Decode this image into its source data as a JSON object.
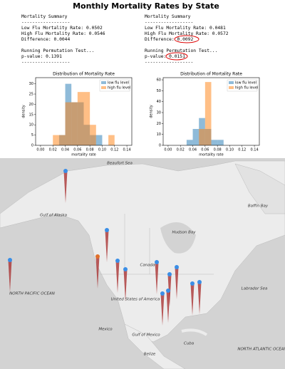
{
  "title": "Monthly Mortality Rates by State",
  "summaries": [
    {
      "heading": "Mortality Summary",
      "rule": "------------------",
      "rates": [
        "Low Flu Mortality Rate: 0.0502",
        "High Flu Mortality Rate: 0.0546",
        "Difference: 0.0044"
      ],
      "test": "Running Permutation Test...",
      "p_value": "p-value: 0.1391",
      "rule_end": "------------------"
    },
    {
      "heading": "Mortality Summary",
      "rule": "------------------",
      "rates": [
        "Low Flu Mortality Rate: 0.0481",
        "High Flu Mortality Rate: 0.0572",
        "Difference: 0.0092"
      ],
      "test": "Running Permutation Test...",
      "p_value": "p-value: 0.0151",
      "rule_end": "------------------"
    }
  ],
  "chart_data": [
    {
      "type": "histogram",
      "title": "Distribution of Mortality Rate",
      "x_label": "mortality rate",
      "y_label": "density",
      "bins": [
        0.02,
        0.03,
        0.04,
        0.05,
        0.06,
        0.07,
        0.08,
        0.09,
        0.1,
        0.11,
        0.12
      ],
      "series": [
        {
          "name": "low flu level",
          "color": "#1f77b4",
          "values": [
            0,
            5,
            30,
            21,
            21,
            10,
            5,
            5,
            0,
            0
          ]
        },
        {
          "name": "high flu level",
          "color": "#ff7f0e",
          "values": [
            5,
            5,
            21,
            21,
            26,
            26,
            10,
            0,
            0,
            5
          ]
        }
      ],
      "xlim": [
        -0.008,
        0.148
      ],
      "xticks": [
        {
          "value": 0,
          "label": "0.00"
        },
        0.02,
        0.04,
        0.06,
        0.08,
        {
          "value": 0.1,
          "label": "0.10"
        },
        0.12,
        0.14
      ],
      "ylim": [
        0,
        33
      ],
      "yticks": [
        0,
        5,
        10,
        15,
        20,
        25,
        30
      ],
      "legend": "upper right"
    },
    {
      "type": "histogram",
      "title": "Distribution of Mortality Rate",
      "x_label": "mortality rate",
      "y_label": "density",
      "bins": [
        0.03,
        0.04,
        0.05,
        0.06,
        0.07,
        0.08,
        0.09
      ],
      "series": [
        {
          "name": "low flu level",
          "color": "#1f77b4",
          "values": [
            5,
            15,
            25,
            15,
            5,
            5
          ]
        },
        {
          "name": "high flu level",
          "color": "#ff7f0e",
          "values": [
            0,
            0,
            15,
            58,
            0,
            0
          ]
        }
      ],
      "xlim": [
        -0.008,
        0.148
      ],
      "xticks": [
        {
          "value": 0,
          "label": "0.00"
        },
        0.02,
        0.04,
        0.06,
        0.08,
        {
          "value": 0.1,
          "label": "0.10"
        },
        0.12,
        0.14
      ],
      "ylim": [
        0,
        62
      ],
      "yticks": [
        0,
        10,
        20,
        30,
        40,
        50,
        60
      ],
      "legend": "upper right"
    }
  ],
  "map": {
    "labels": [
      "Beaufort Sea",
      "Baffin Bay",
      "Gulf of Alaska",
      "Hudson Bay",
      "Canada",
      "NORTH PACIFIC OCEAN",
      "United States of America",
      "Labrador Sea",
      "Mexico",
      "Gulf of Mexico",
      "NORTH ATLANTIC OCEAN",
      "Cuba",
      "Belize"
    ]
  }
}
